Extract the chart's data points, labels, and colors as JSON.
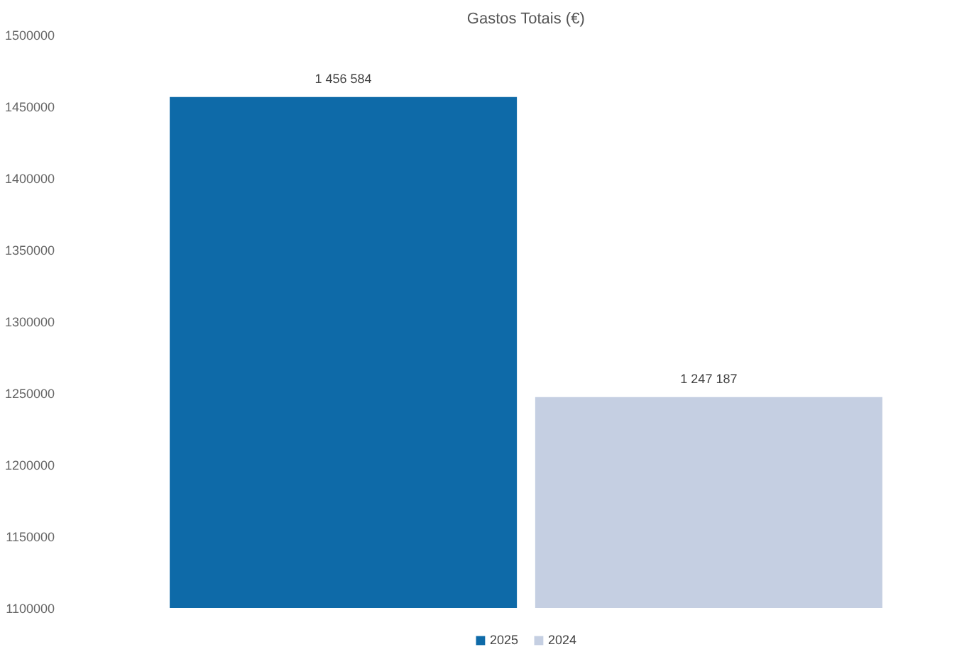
{
  "chart_data": {
    "type": "bar",
    "title": "Gastos Totais (€)",
    "categories": [
      null
    ],
    "series": [
      {
        "name": "2025",
        "color": "#0e6aa8",
        "values": [
          1456584
        ],
        "value_labels": [
          "1 456 584"
        ]
      },
      {
        "name": "2024",
        "color": "#c5cfe2",
        "values": [
          1247187
        ],
        "value_labels": [
          "1 247 187"
        ]
      }
    ],
    "ylim": [
      1100000,
      1500000
    ],
    "yticks": [
      1100000,
      1150000,
      1200000,
      1250000,
      1300000,
      1350000,
      1400000,
      1450000,
      1500000
    ],
    "grid": false,
    "legend": "bottom",
    "tick_labels": "y"
  }
}
